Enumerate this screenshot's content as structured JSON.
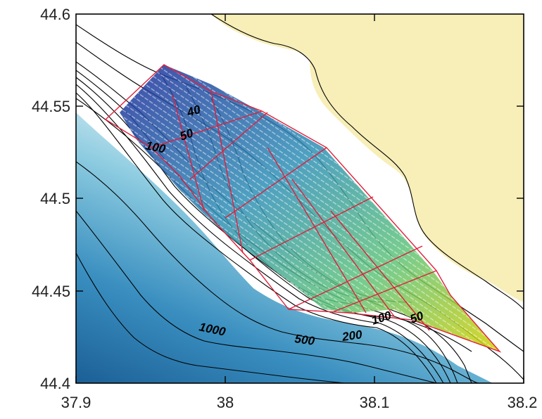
{
  "map": {
    "x_ticks": [
      "37.9",
      "38",
      "38.1",
      "38.2"
    ],
    "y_ticks": [
      "44.6",
      "44.55",
      "44.5",
      "44.45",
      "44.4"
    ],
    "contour_labels": [
      "40",
      "50",
      "100",
      "1000",
      "500",
      "200",
      "100",
      "50"
    ],
    "colors": {
      "land": "#f7eeb8",
      "shallow_water": "#ffffff",
      "deep_water": "#1f6ea3",
      "grid_outline": "#e0203a",
      "contour": "#000000"
    }
  }
}
